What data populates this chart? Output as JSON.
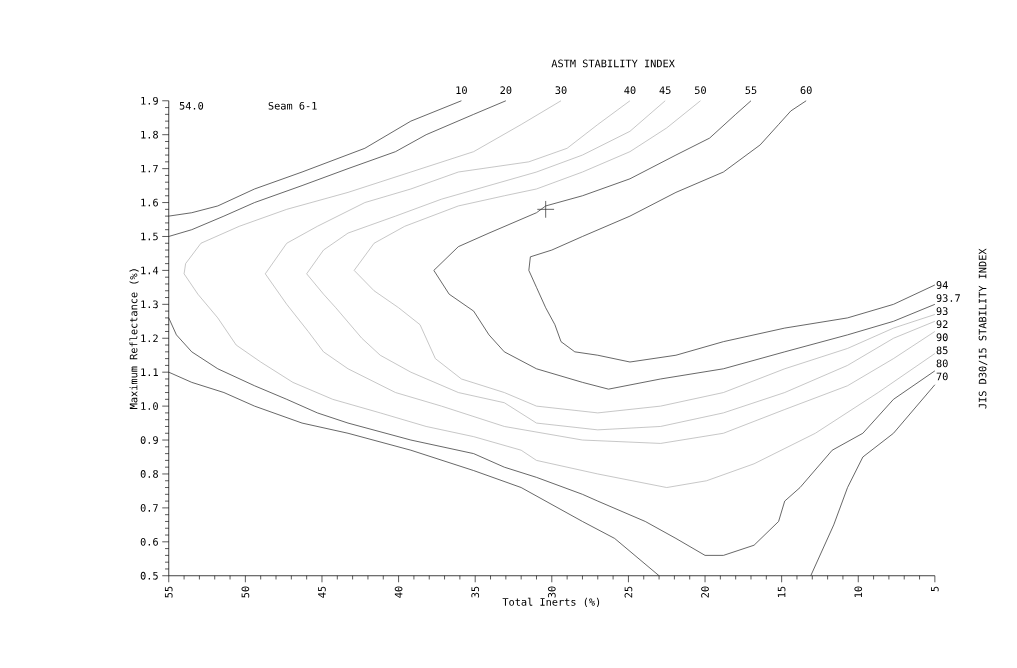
{
  "chart_data": {
    "type": "line",
    "title": "ASTM STABILITY INDEX",
    "xlabel": "Total Inerts (%)",
    "ylabel": "Maximum Reflectance (%)",
    "y2label": "JIS D30/15 STABILITY INDEX",
    "xlim": [
      55,
      5
    ],
    "xticks": [
      55,
      50,
      45,
      40,
      35,
      30,
      25,
      20,
      15,
      10,
      5
    ],
    "ylim": [
      0.5,
      1.9
    ],
    "yticks": [
      0.5,
      0.6,
      0.7,
      0.8,
      0.9,
      {
        "value": 1.0,
        "label": "1.0"
      },
      1.1,
      1.2,
      1.3,
      1.4,
      1.5,
      1.6,
      1.7,
      1.8,
      1.9
    ],
    "series": [
      {
        "color": "#333333",
        "x": [
          35.9,
          39.2,
          42.2,
          46.3,
          49.4,
          51.8,
          53.5,
          55
        ],
        "values": [
          1.9,
          1.84,
          1.76,
          1.69,
          1.64,
          1.59,
          1.57,
          1.56
        ]
      },
      {
        "color": "#333333",
        "x": [
          33.0,
          35.1,
          38.2,
          40.2,
          43.3,
          46.3,
          49.4,
          51.4,
          53.5,
          55
        ],
        "values": [
          1.9,
          1.86,
          1.8,
          1.75,
          1.7,
          1.65,
          1.6,
          1.56,
          1.52,
          1.5
        ]
      },
      {
        "color": "#b4b4b4",
        "x": [
          29.4,
          32.0,
          35.1,
          39.2,
          43.3,
          47.3,
          50.4,
          52.9,
          53.9,
          54.0,
          53.1,
          51.8,
          50.6,
          49.0,
          46.9,
          44.3,
          41.2,
          38.2,
          35.1,
          32.0,
          31.0,
          27.0,
          22.5,
          19.9,
          16.8,
          12.8,
          8.7,
          5.0
        ],
        "values": [
          1.9,
          1.83,
          1.75,
          1.69,
          1.63,
          1.58,
          1.53,
          1.48,
          1.42,
          1.39,
          1.33,
          1.26,
          1.18,
          1.13,
          1.07,
          1.02,
          0.98,
          0.94,
          0.91,
          0.87,
          0.84,
          0.8,
          0.76,
          0.78,
          0.83,
          0.92,
          1.04,
          1.155
        ]
      },
      {
        "color": "#b4b4b4",
        "x": [
          24.9,
          27.0,
          29.0,
          31.5,
          36.1,
          39.2,
          42.2,
          45.3,
          47.3,
          48.7,
          47.3,
          45.9,
          44.9,
          43.3,
          40.2,
          37.2,
          33.1,
          28.0,
          22.9,
          18.8,
          14.8,
          10.7,
          7.7,
          5.0
        ],
        "values": [
          1.9,
          1.83,
          1.76,
          1.72,
          1.69,
          1.64,
          1.6,
          1.53,
          1.48,
          1.39,
          1.3,
          1.22,
          1.16,
          1.11,
          1.04,
          1.0,
          0.94,
          0.9,
          0.89,
          0.92,
          0.99,
          1.06,
          1.14,
          1.22
        ]
      },
      {
        "color": "#b4b4b4",
        "x": [
          22.6,
          24.9,
          28.0,
          31.0,
          34.1,
          37.2,
          40.2,
          43.3,
          44.9,
          46.0,
          44.9,
          44.1,
          42.4,
          41.2,
          39.2,
          36.1,
          33.1,
          31.0,
          27.0,
          22.9,
          18.8,
          14.8,
          10.7,
          7.7,
          5.0
        ],
        "values": [
          1.9,
          1.81,
          1.74,
          1.69,
          1.65,
          1.61,
          1.56,
          1.51,
          1.46,
          1.39,
          1.33,
          1.29,
          1.2,
          1.15,
          1.1,
          1.04,
          1.01,
          0.95,
          0.93,
          0.94,
          0.98,
          1.04,
          1.12,
          1.2,
          1.25
        ]
      },
      {
        "color": "#b4b4b4",
        "x": [
          20.3,
          22.5,
          24.9,
          28.0,
          31.0,
          33.1,
          36.1,
          39.6,
          41.6,
          42.9,
          41.6,
          40.0,
          38.6,
          37.6,
          35.9,
          33.1,
          31.0,
          27.0,
          22.9,
          18.8,
          14.8,
          10.7,
          7.7,
          5.0
        ],
        "values": [
          1.9,
          1.82,
          1.75,
          1.69,
          1.64,
          1.62,
          1.59,
          1.53,
          1.48,
          1.4,
          1.34,
          1.29,
          1.24,
          1.14,
          1.08,
          1.04,
          1.0,
          0.98,
          1.0,
          1.04,
          1.11,
          1.17,
          1.23,
          1.27
        ]
      },
      {
        "color": "#333333",
        "x": [
          17.0,
          18.0,
          19.7,
          21.9,
          24.9,
          28.0,
          30.4,
          31.0,
          34.1,
          36.1,
          37.7,
          36.7,
          35.1,
          34.1,
          33.1,
          31.0,
          28.0,
          26.3,
          22.9,
          18.8,
          14.8,
          10.7,
          7.7,
          5.0
        ],
        "values": [
          1.9,
          1.86,
          1.79,
          1.74,
          1.67,
          1.62,
          1.59,
          1.57,
          1.51,
          1.47,
          1.4,
          1.33,
          1.28,
          1.21,
          1.16,
          1.11,
          1.07,
          1.05,
          1.08,
          1.11,
          1.16,
          1.21,
          1.25,
          1.3
        ]
      },
      {
        "color": "#333333",
        "x": [
          13.4,
          14.4,
          15.2,
          16.4,
          18.8,
          21.9,
          24.9,
          28.0,
          30.0,
          31.4,
          31.5,
          31.0,
          30.4,
          29.8,
          29.4,
          28.5,
          27.0,
          24.9,
          21.9,
          18.8,
          14.8,
          10.7,
          7.7,
          5.0
        ],
        "values": [
          1.9,
          1.87,
          1.83,
          1.77,
          1.69,
          1.63,
          1.56,
          1.5,
          1.46,
          1.44,
          1.4,
          1.35,
          1.29,
          1.24,
          1.19,
          1.16,
          1.15,
          1.13,
          1.15,
          1.19,
          1.23,
          1.26,
          1.3,
          1.357
        ]
      },
      {
        "color": "#333333",
        "x": [
          55,
          54.5,
          53.5,
          51.8,
          49.4,
          47.3,
          45.3,
          43.3,
          39.2,
          35.1,
          33.1,
          31.0,
          28.0,
          27.0,
          23.9,
          21.9,
          20.0,
          18.8,
          16.8,
          15.2,
          14.8,
          13.8,
          11.7,
          9.7,
          7.7,
          5.0
        ],
        "values": [
          1.26,
          1.21,
          1.16,
          1.11,
          1.06,
          1.02,
          0.98,
          0.95,
          0.9,
          0.86,
          0.82,
          0.79,
          0.74,
          0.72,
          0.66,
          0.61,
          0.56,
          0.56,
          0.59,
          0.66,
          0.72,
          0.76,
          0.87,
          0.92,
          1.02,
          1.104
        ]
      },
      {
        "color": "#333333",
        "x": [
          55,
          53.5,
          51.4,
          49.4,
          46.3,
          43.3,
          39.2,
          35.1,
          32.0,
          30.0,
          28.0,
          25.9,
          23.0,
          18,
          13.1,
          11.6,
          10.7,
          9.7,
          7.7,
          5.0
        ],
        "values": [
          1.1,
          1.07,
          1.04,
          1.0,
          0.95,
          0.92,
          0.87,
          0.81,
          0.76,
          0.71,
          0.66,
          0.61,
          0.5,
          null,
          0.5,
          0.65,
          0.76,
          0.85,
          0.92,
          1.063
        ]
      },
      {
        "type": "scatter",
        "marker": "cross",
        "color": "#333333",
        "x": [
          30.4
        ],
        "values": [
          1.58
        ]
      }
    ],
    "annotations": [
      "54.0",
      "Seam 6-1",
      {
        "text": "10",
        "x": 35.9,
        "y": 1.9
      },
      {
        "text": "20",
        "x": 33.0,
        "y": 1.9
      },
      {
        "text": "30",
        "x": 29.4,
        "y": 1.9
      },
      {
        "text": "40",
        "x": 24.9,
        "y": 1.9
      },
      {
        "text": "45",
        "x": 22.6,
        "y": 1.9
      },
      {
        "text": "50",
        "x": 20.3,
        "y": 1.9
      },
      {
        "text": "55",
        "x": 17.0,
        "y": 1.9
      },
      {
        "text": "60",
        "x": 13.4,
        "y": 1.9
      },
      {
        "text": "94",
        "x": 5,
        "y": 1.357
      },
      {
        "text": "93.7",
        "x": 5,
        "y": 1.304
      },
      {
        "text": "93",
        "x": 5,
        "y": 1.27
      },
      {
        "text": "92",
        "x": 5,
        "y": 1.25
      },
      {
        "text": "90",
        "x": 5,
        "y": 1.22
      },
      {
        "text": "85",
        "x": 5,
        "y": 1.155
      },
      {
        "text": "80",
        "x": 5,
        "y": 1.104
      },
      {
        "text": "70",
        "x": 5,
        "y": 1.063
      }
    ]
  }
}
